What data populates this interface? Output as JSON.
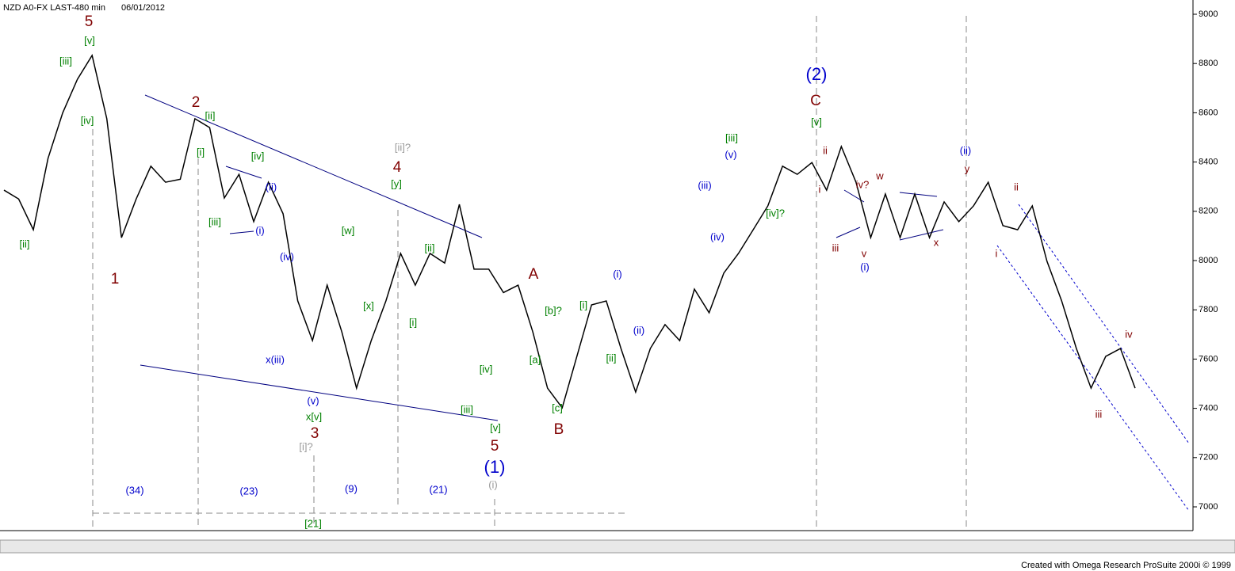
{
  "header": {
    "symbol": "NZD A0-FX LAST-480 min",
    "date": "06/01/2012"
  },
  "footer": "Created with Omega Research ProSuite 2000i © 1999",
  "chart_data": {
    "type": "line",
    "color": "#000000",
    "values": [
      8286,
      8250,
      8125,
      8415,
      8600,
      8736,
      8833,
      8576,
      8093,
      8250,
      8383,
      8318,
      8330,
      8576,
      8540,
      8254,
      8350,
      8158,
      8318,
      8190,
      7836,
      7675,
      7900,
      7710,
      7482,
      7675,
      7836,
      8029,
      7900,
      8029,
      7990,
      8228,
      7965,
      7965,
      7870,
      7900,
      7710,
      7482,
      7402,
      7611,
      7820,
      7836,
      7643,
      7466,
      7643,
      7740,
      7675,
      7884,
      7788,
      7949,
      8029,
      8125,
      8222,
      8383,
      8350,
      8398,
      8286,
      8463,
      8318,
      8093,
      8270,
      8093,
      8270,
      8093,
      8238,
      8158,
      8222,
      8318,
      8142,
      8125,
      8222,
      7997,
      7836,
      7643,
      7482,
      7611,
      7643,
      7482
    ],
    "ylim": [
      7000,
      9000
    ],
    "yticks": [
      7000,
      7200,
      7400,
      7600,
      7800,
      8000,
      8200,
      8400,
      8600,
      8800,
      9000
    ],
    "annotations": [
      {
        "text": "5",
        "color": "#800000"
      },
      {
        "text": "[v]",
        "color": "#008000"
      },
      {
        "text": "[iii]",
        "color": "#008000"
      },
      {
        "text": "[iv]",
        "color": "#008000"
      },
      {
        "text": "[ii]",
        "color": "#008000"
      },
      {
        "text": "1",
        "color": "#800000"
      },
      {
        "text": "2",
        "color": "#800000"
      },
      {
        "text": "[ii]",
        "color": "#008000"
      },
      {
        "text": "[i]",
        "color": "#008000"
      },
      {
        "text": "[iii]",
        "color": "#008000"
      },
      {
        "text": "[iv]",
        "color": "#008000"
      },
      {
        "text": "(ii)",
        "color": "#0000cc"
      },
      {
        "text": "(i)",
        "color": "#0000cc"
      },
      {
        "text": "(iv)",
        "color": "#0000cc"
      },
      {
        "text": "x(iii)",
        "color": "#0000cc"
      },
      {
        "text": "(v)",
        "color": "#0000cc"
      },
      {
        "text": "x[v]",
        "color": "#008000"
      },
      {
        "text": "3",
        "color": "#800000"
      },
      {
        "text": "[i]?",
        "color": "#999999"
      },
      {
        "text": "[w]",
        "color": "#008000"
      },
      {
        "text": "[x]",
        "color": "#008000"
      },
      {
        "text": "[ii]?",
        "color": "#999999"
      },
      {
        "text": "4",
        "color": "#800000"
      },
      {
        "text": "[y]",
        "color": "#008000"
      },
      {
        "text": "[ii]",
        "color": "#008000"
      },
      {
        "text": "[i]",
        "color": "#008000"
      },
      {
        "text": "[iv]",
        "color": "#008000"
      },
      {
        "text": "[iii]",
        "color": "#008000"
      },
      {
        "text": "[v]",
        "color": "#008000"
      },
      {
        "text": "5",
        "color": "#800000"
      },
      {
        "text": "(1)",
        "color": "#0000cc"
      },
      {
        "text": "(i)",
        "color": "#999999"
      },
      {
        "text": "A",
        "color": "#800000"
      },
      {
        "text": "[b]?",
        "color": "#008000"
      },
      {
        "text": "[a]",
        "color": "#008000"
      },
      {
        "text": "[c]",
        "color": "#008000"
      },
      {
        "text": "B",
        "color": "#800000"
      },
      {
        "text": "[i]",
        "color": "#008000"
      },
      {
        "text": "[ii]",
        "color": "#008000"
      },
      {
        "text": "(i)",
        "color": "#0000cc"
      },
      {
        "text": "(ii)",
        "color": "#0000cc"
      },
      {
        "text": "(iii)",
        "color": "#0000cc"
      },
      {
        "text": "(iv)",
        "color": "#0000cc"
      },
      {
        "text": "(v)",
        "color": "#0000cc"
      },
      {
        "text": "[iii]",
        "color": "#008000"
      },
      {
        "text": "[iv]?",
        "color": "#008000"
      },
      {
        "text": "(2)",
        "color": "#0000cc"
      },
      {
        "text": "C",
        "color": "#800000"
      },
      {
        "text": "[v]",
        "color": "#008000"
      },
      {
        "text": "ii",
        "color": "#800000"
      },
      {
        "text": "i",
        "color": "#800000"
      },
      {
        "text": "iii",
        "color": "#800000"
      },
      {
        "text": "iv?",
        "color": "#800000"
      },
      {
        "text": "w",
        "color": "#800000"
      },
      {
        "text": "v",
        "color": "#800000"
      },
      {
        "text": "(i)",
        "color": "#0000cc"
      },
      {
        "text": "x",
        "color": "#800000"
      },
      {
        "text": "(ii)",
        "color": "#0000cc"
      },
      {
        "text": "y",
        "color": "#800000"
      },
      {
        "text": "ii",
        "color": "#800000"
      },
      {
        "text": "i",
        "color": "#800000"
      },
      {
        "text": "iii",
        "color": "#800000"
      },
      {
        "text": "iv",
        "color": "#800000"
      },
      {
        "text": "(34)",
        "color": "#0000cc"
      },
      {
        "text": "(23)",
        "color": "#0000cc"
      },
      {
        "text": "(9)",
        "color": "#0000cc"
      },
      {
        "text": "(21)",
        "color": "#0000cc"
      },
      {
        "text": "[21]",
        "color": "#008000"
      }
    ]
  }
}
